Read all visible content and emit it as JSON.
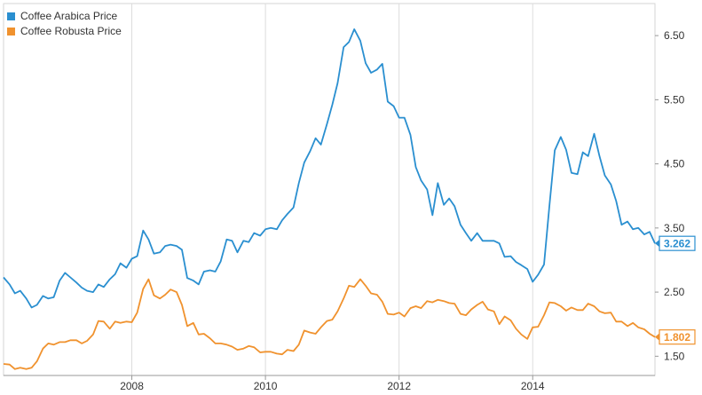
{
  "chart_data": {
    "type": "line",
    "xlim": [
      2006.08,
      2015.83
    ],
    "ylim": [
      1.2,
      7.0
    ],
    "x_ticks": [
      2008,
      2010,
      2012,
      2014
    ],
    "x_tick_labels": [
      "2008",
      "2010",
      "2012",
      "2014"
    ],
    "y_ticks": [
      1.5,
      2.5,
      3.5,
      4.5,
      5.5,
      6.5
    ],
    "y_tick_labels": [
      "1.50",
      "2.50",
      "3.50",
      "4.50",
      "5.50",
      "6.50"
    ],
    "grid": "vertical at x ticks",
    "legend": "top-left",
    "series": [
      {
        "name": "Coffee Arabica Price",
        "color": "#2a8fd0",
        "last_value_label": "3.262",
        "x": [
          2006.08,
          2006.17,
          2006.25,
          2006.33,
          2006.42,
          2006.5,
          2006.58,
          2006.67,
          2006.75,
          2006.83,
          2006.92,
          2007.0,
          2007.08,
          2007.17,
          2007.25,
          2007.33,
          2007.42,
          2007.5,
          2007.58,
          2007.67,
          2007.75,
          2007.83,
          2007.92,
          2008.0,
          2008.08,
          2008.17,
          2008.25,
          2008.33,
          2008.42,
          2008.5,
          2008.58,
          2008.67,
          2008.75,
          2008.83,
          2008.92,
          2009.0,
          2009.08,
          2009.17,
          2009.25,
          2009.33,
          2009.42,
          2009.5,
          2009.58,
          2009.67,
          2009.75,
          2009.83,
          2009.92,
          2010.0,
          2010.08,
          2010.17,
          2010.25,
          2010.33,
          2010.42,
          2010.5,
          2010.58,
          2010.67,
          2010.75,
          2010.83,
          2010.92,
          2011.0,
          2011.08,
          2011.17,
          2011.25,
          2011.33,
          2011.42,
          2011.5,
          2011.58,
          2011.67,
          2011.75,
          2011.83,
          2011.92,
          2012.0,
          2012.08,
          2012.17,
          2012.25,
          2012.33,
          2012.42,
          2012.5,
          2012.58,
          2012.67,
          2012.75,
          2012.83,
          2012.92,
          2013.0,
          2013.08,
          2013.17,
          2013.25,
          2013.33,
          2013.42,
          2013.5,
          2013.58,
          2013.67,
          2013.75,
          2013.83,
          2013.92,
          2014.0,
          2014.08,
          2014.17,
          2014.25,
          2014.33,
          2014.42,
          2014.5,
          2014.58,
          2014.67,
          2014.75,
          2014.83,
          2014.92,
          2015.0,
          2015.08,
          2015.17,
          2015.25,
          2015.33,
          2015.42,
          2015.5,
          2015.58,
          2015.67,
          2015.75,
          2015.83
        ],
        "values": [
          2.73,
          2.62,
          2.48,
          2.52,
          2.4,
          2.26,
          2.3,
          2.44,
          2.4,
          2.42,
          2.68,
          2.8,
          2.73,
          2.65,
          2.57,
          2.52,
          2.5,
          2.62,
          2.58,
          2.7,
          2.78,
          2.95,
          2.88,
          3.02,
          3.06,
          3.46,
          3.32,
          3.1,
          3.12,
          3.22,
          3.24,
          3.22,
          3.16,
          2.72,
          2.68,
          2.62,
          2.82,
          2.84,
          2.82,
          2.98,
          3.32,
          3.3,
          3.12,
          3.3,
          3.28,
          3.42,
          3.38,
          3.48,
          3.5,
          3.48,
          3.62,
          3.72,
          3.82,
          4.2,
          4.52,
          4.7,
          4.9,
          4.8,
          5.12,
          5.42,
          5.76,
          6.32,
          6.4,
          6.6,
          6.42,
          6.07,
          5.92,
          5.97,
          6.06,
          5.47,
          5.4,
          5.22,
          5.22,
          4.95,
          4.45,
          4.24,
          4.1,
          3.7,
          4.2,
          3.86,
          3.96,
          3.84,
          3.55,
          3.42,
          3.3,
          3.42,
          3.3,
          3.3,
          3.3,
          3.26,
          3.05,
          3.06,
          2.97,
          2.92,
          2.86,
          2.66,
          2.77,
          2.93,
          3.85,
          4.71,
          4.92,
          4.72,
          4.36,
          4.34,
          4.68,
          4.62,
          4.97,
          4.62,
          4.32,
          4.18,
          3.92,
          3.55,
          3.6,
          3.48,
          3.5,
          3.4,
          3.44,
          3.26
        ]
      },
      {
        "name": "Coffee Robusta Price",
        "color": "#f0922e",
        "last_value_label": "1.802",
        "x": [
          2006.08,
          2006.17,
          2006.25,
          2006.33,
          2006.42,
          2006.5,
          2006.58,
          2006.67,
          2006.75,
          2006.83,
          2006.92,
          2007.0,
          2007.08,
          2007.17,
          2007.25,
          2007.33,
          2007.42,
          2007.5,
          2007.58,
          2007.67,
          2007.75,
          2007.83,
          2007.92,
          2008.0,
          2008.08,
          2008.17,
          2008.25,
          2008.33,
          2008.42,
          2008.5,
          2008.58,
          2008.67,
          2008.75,
          2008.83,
          2008.92,
          2009.0,
          2009.08,
          2009.17,
          2009.25,
          2009.33,
          2009.42,
          2009.5,
          2009.58,
          2009.67,
          2009.75,
          2009.83,
          2009.92,
          2010.0,
          2010.08,
          2010.17,
          2010.25,
          2010.33,
          2010.42,
          2010.5,
          2010.58,
          2010.67,
          2010.75,
          2010.83,
          2010.92,
          2011.0,
          2011.08,
          2011.17,
          2011.25,
          2011.33,
          2011.42,
          2011.5,
          2011.58,
          2011.67,
          2011.75,
          2011.83,
          2011.92,
          2012.0,
          2012.08,
          2012.17,
          2012.25,
          2012.33,
          2012.42,
          2012.5,
          2012.58,
          2012.67,
          2012.75,
          2012.83,
          2012.92,
          2013.0,
          2013.08,
          2013.17,
          2013.25,
          2013.33,
          2013.42,
          2013.5,
          2013.58,
          2013.67,
          2013.75,
          2013.83,
          2013.92,
          2014.0,
          2014.08,
          2014.17,
          2014.25,
          2014.33,
          2014.42,
          2014.5,
          2014.58,
          2014.67,
          2014.75,
          2014.83,
          2014.92,
          2015.0,
          2015.08,
          2015.17,
          2015.25,
          2015.33,
          2015.42,
          2015.5,
          2015.58,
          2015.67,
          2015.75,
          2015.83
        ],
        "values": [
          1.38,
          1.37,
          1.3,
          1.32,
          1.3,
          1.32,
          1.42,
          1.62,
          1.7,
          1.68,
          1.72,
          1.72,
          1.75,
          1.75,
          1.7,
          1.74,
          1.84,
          2.05,
          2.04,
          1.93,
          2.04,
          2.02,
          2.04,
          2.03,
          2.18,
          2.55,
          2.7,
          2.45,
          2.4,
          2.46,
          2.54,
          2.5,
          2.3,
          1.97,
          2.02,
          1.84,
          1.85,
          1.78,
          1.7,
          1.7,
          1.68,
          1.65,
          1.6,
          1.62,
          1.66,
          1.64,
          1.56,
          1.57,
          1.57,
          1.54,
          1.53,
          1.6,
          1.58,
          1.68,
          1.9,
          1.87,
          1.85,
          1.95,
          2.05,
          2.07,
          2.2,
          2.4,
          2.6,
          2.58,
          2.7,
          2.6,
          2.48,
          2.46,
          2.35,
          2.16,
          2.15,
          2.18,
          2.12,
          2.25,
          2.28,
          2.25,
          2.36,
          2.34,
          2.38,
          2.36,
          2.33,
          2.32,
          2.16,
          2.14,
          2.23,
          2.3,
          2.35,
          2.23,
          2.2,
          2.0,
          2.12,
          2.06,
          1.93,
          1.84,
          1.77,
          1.95,
          1.96,
          2.14,
          2.34,
          2.33,
          2.28,
          2.21,
          2.26,
          2.22,
          2.22,
          2.32,
          2.28,
          2.2,
          2.17,
          2.18,
          2.04,
          2.04,
          1.97,
          2.02,
          1.95,
          1.92,
          1.85,
          1.8
        ]
      }
    ]
  }
}
